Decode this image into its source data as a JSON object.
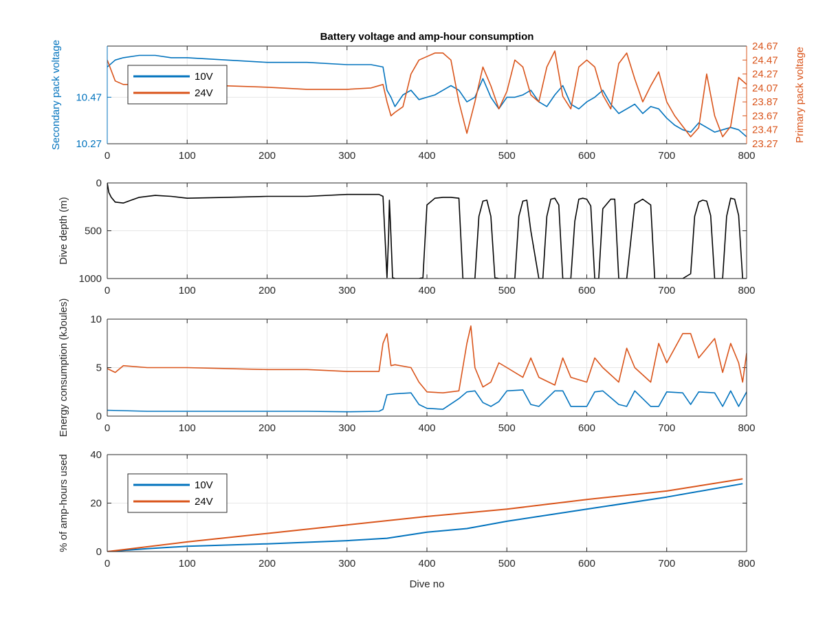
{
  "colors": {
    "blue": "#0072BD",
    "orange": "#D95319",
    "black": "#000000",
    "axis": "#262626",
    "grid": "#e6e6e6"
  },
  "chart_data": [
    {
      "type": "line",
      "title": "Battery voltage and amp-hour consumption",
      "ylabel": "Secondary pack voltage",
      "ylabel_right": "Primary pack voltage",
      "xlim": [
        0,
        800
      ],
      "xticks": [
        "0",
        "100",
        "200",
        "300",
        "400",
        "500",
        "600",
        "700",
        "800"
      ],
      "yticks_left": [
        "10.27",
        "10.47"
      ],
      "yticks_right": [
        "23.27",
        "23.47",
        "23.67",
        "23.87",
        "24.07",
        "24.27",
        "24.47",
        "24.67"
      ],
      "ylim_left": [
        10.27,
        10.69
      ],
      "ylim_right": [
        23.27,
        24.67
      ],
      "grid": true,
      "legend": {
        "position": "upper-left",
        "entries": [
          "10V",
          "24V"
        ]
      },
      "series": [
        {
          "name": "10V",
          "axis": "left",
          "x": [
            0,
            10,
            20,
            40,
            60,
            80,
            100,
            150,
            200,
            250,
            300,
            330,
            345,
            350,
            355,
            360,
            370,
            380,
            390,
            400,
            410,
            420,
            430,
            440,
            450,
            460,
            470,
            480,
            490,
            500,
            510,
            520,
            530,
            540,
            550,
            560,
            570,
            580,
            590,
            600,
            610,
            620,
            630,
            640,
            650,
            660,
            670,
            680,
            690,
            700,
            710,
            720,
            730,
            740,
            750,
            760,
            770,
            780,
            790,
            800
          ],
          "y": [
            10.6,
            10.63,
            10.64,
            10.65,
            10.65,
            10.64,
            10.64,
            10.63,
            10.62,
            10.62,
            10.61,
            10.61,
            10.6,
            10.5,
            10.47,
            10.43,
            10.48,
            10.5,
            10.46,
            10.47,
            10.48,
            10.5,
            10.52,
            10.5,
            10.45,
            10.47,
            10.55,
            10.47,
            10.42,
            10.47,
            10.47,
            10.48,
            10.5,
            10.45,
            10.43,
            10.48,
            10.52,
            10.44,
            10.42,
            10.45,
            10.47,
            10.5,
            10.44,
            10.4,
            10.42,
            10.44,
            10.4,
            10.43,
            10.42,
            10.38,
            10.35,
            10.33,
            10.32,
            10.36,
            10.34,
            10.32,
            10.33,
            10.34,
            10.33,
            10.3
          ]
        },
        {
          "name": "24V",
          "axis": "right",
          "x": [
            0,
            10,
            20,
            40,
            60,
            80,
            100,
            150,
            200,
            250,
            300,
            330,
            345,
            350,
            355,
            360,
            370,
            380,
            390,
            400,
            410,
            420,
            430,
            440,
            450,
            460,
            470,
            480,
            490,
            500,
            510,
            520,
            530,
            540,
            550,
            560,
            570,
            580,
            590,
            600,
            610,
            620,
            630,
            640,
            650,
            660,
            670,
            680,
            690,
            700,
            710,
            720,
            730,
            740,
            750,
            760,
            770,
            780,
            790,
            800
          ],
          "y": [
            24.47,
            24.17,
            24.12,
            24.12,
            24.1,
            24.12,
            24.12,
            24.1,
            24.08,
            24.05,
            24.05,
            24.07,
            24.12,
            23.87,
            23.67,
            23.72,
            23.8,
            24.27,
            24.47,
            24.52,
            24.57,
            24.57,
            24.47,
            23.87,
            23.42,
            23.87,
            24.37,
            24.1,
            23.77,
            24.02,
            24.47,
            24.37,
            23.97,
            23.87,
            24.37,
            24.6,
            23.95,
            23.77,
            24.37,
            24.47,
            24.37,
            23.97,
            23.77,
            24.42,
            24.57,
            24.2,
            23.87,
            24.1,
            24.3,
            23.87,
            23.67,
            23.52,
            23.37,
            23.5,
            24.27,
            23.67,
            23.37,
            23.52,
            24.22,
            24.12
          ]
        }
      ]
    },
    {
      "type": "line",
      "ylabel": "Dive depth (m)",
      "xlim": [
        0,
        800
      ],
      "ylim": [
        0,
        1000
      ],
      "reversed_y": true,
      "xticks": [
        "0",
        "100",
        "200",
        "300",
        "400",
        "500",
        "600",
        "700",
        "800"
      ],
      "yticks": [
        "0",
        "500",
        "1000"
      ],
      "grid": true,
      "series": [
        {
          "x": [
            0,
            2,
            5,
            10,
            20,
            30,
            40,
            60,
            80,
            100,
            150,
            200,
            250,
            300,
            320,
            340,
            345,
            350,
            352,
            353,
            355,
            357,
            360,
            370,
            380,
            390,
            395,
            400,
            410,
            420,
            430,
            440,
            445,
            455,
            460,
            465,
            470,
            475,
            480,
            485,
            490,
            500,
            510,
            515,
            520,
            525,
            530,
            540,
            545,
            550,
            555,
            560,
            565,
            570,
            580,
            585,
            590,
            595,
            600,
            605,
            610,
            615,
            620,
            630,
            635,
            640,
            645,
            650,
            660,
            670,
            680,
            685,
            690,
            695,
            700,
            710,
            720,
            730,
            735,
            740,
            745,
            750,
            755,
            760,
            770,
            775,
            780,
            785,
            790,
            795,
            800
          ],
          "y": [
            0,
            100,
            150,
            200,
            210,
            180,
            150,
            130,
            140,
            160,
            150,
            140,
            140,
            120,
            120,
            120,
            140,
            990,
            560,
            180,
            560,
            990,
            1000,
            1000,
            1000,
            1000,
            990,
            230,
            160,
            150,
            150,
            160,
            1000,
            1000,
            1000,
            350,
            190,
            180,
            350,
            990,
            1000,
            1000,
            1000,
            350,
            190,
            180,
            500,
            1000,
            1000,
            350,
            170,
            160,
            230,
            1000,
            1000,
            400,
            170,
            160,
            170,
            240,
            1000,
            1000,
            270,
            170,
            170,
            1000,
            1000,
            1000,
            220,
            170,
            230,
            1000,
            1000,
            1000,
            1000,
            1000,
            1000,
            950,
            350,
            200,
            180,
            190,
            340,
            1000,
            1000,
            350,
            160,
            170,
            340,
            1000,
            1000
          ]
        }
      ]
    },
    {
      "type": "line",
      "ylabel": "Energy consumption (kJoules)",
      "xlim": [
        0,
        800
      ],
      "ylim": [
        0,
        10
      ],
      "xticks": [
        "0",
        "100",
        "200",
        "300",
        "400",
        "500",
        "600",
        "700",
        "800"
      ],
      "yticks": [
        "0",
        "5",
        "10"
      ],
      "grid": true,
      "series": [
        {
          "name": "10V",
          "x": [
            0,
            50,
            100,
            150,
            200,
            250,
            300,
            340,
            345,
            350,
            360,
            380,
            390,
            400,
            420,
            440,
            450,
            460,
            470,
            480,
            490,
            500,
            520,
            530,
            540,
            560,
            570,
            580,
            600,
            610,
            620,
            640,
            650,
            660,
            680,
            690,
            700,
            720,
            730,
            740,
            760,
            770,
            780,
            790,
            800
          ],
          "y": [
            0.6,
            0.5,
            0.5,
            0.5,
            0.5,
            0.5,
            0.45,
            0.5,
            0.7,
            2.2,
            2.3,
            2.4,
            1.2,
            0.8,
            0.7,
            1.8,
            2.5,
            2.6,
            1.4,
            1.0,
            1.5,
            2.6,
            2.7,
            1.2,
            1.0,
            2.6,
            2.6,
            1.0,
            1.0,
            2.5,
            2.6,
            1.2,
            1.0,
            2.6,
            1.0,
            1.0,
            2.5,
            2.4,
            1.2,
            2.5,
            2.4,
            1.0,
            2.6,
            1.0,
            2.5
          ]
        },
        {
          "name": "24V",
          "x": [
            0,
            10,
            20,
            50,
            100,
            150,
            200,
            250,
            300,
            340,
            345,
            350,
            355,
            360,
            380,
            390,
            400,
            420,
            440,
            450,
            455,
            460,
            470,
            480,
            490,
            500,
            520,
            530,
            540,
            560,
            570,
            580,
            600,
            610,
            620,
            640,
            650,
            660,
            680,
            690,
            700,
            720,
            730,
            740,
            760,
            770,
            780,
            790,
            795,
            800
          ],
          "y": [
            4.9,
            4.5,
            5.2,
            5.0,
            5.0,
            4.9,
            4.8,
            4.8,
            4.6,
            4.6,
            7.5,
            8.5,
            5.2,
            5.3,
            5.0,
            3.5,
            2.5,
            2.4,
            2.6,
            7.5,
            9.3,
            5.0,
            3.0,
            3.5,
            5.5,
            5.0,
            4.0,
            6.0,
            4.0,
            3.2,
            6.0,
            4.0,
            3.5,
            6.0,
            5.0,
            3.5,
            7.0,
            5.0,
            3.5,
            7.5,
            5.5,
            8.5,
            8.5,
            6.0,
            8.0,
            4.5,
            7.5,
            5.5,
            3.5,
            6.5
          ]
        }
      ]
    },
    {
      "type": "line",
      "xlabel": "Dive no",
      "ylabel": "% of amp-hours used",
      "xlim": [
        0,
        800
      ],
      "ylim": [
        0,
        40
      ],
      "xticks": [
        "0",
        "100",
        "200",
        "300",
        "400",
        "500",
        "600",
        "700",
        "800"
      ],
      "yticks": [
        "0",
        "20",
        "40"
      ],
      "grid": true,
      "legend": {
        "position": "upper-left",
        "entries": [
          "10V",
          "24V"
        ]
      },
      "series": [
        {
          "name": "10V",
          "x": [
            0,
            50,
            100,
            200,
            300,
            350,
            400,
            450,
            500,
            600,
            700,
            795
          ],
          "y": [
            0,
            1.2,
            2.2,
            3.2,
            4.5,
            5.5,
            8,
            9.5,
            12.5,
            17.5,
            22.5,
            28
          ]
        },
        {
          "name": "24V",
          "x": [
            0,
            100,
            200,
            300,
            400,
            500,
            600,
            700,
            795
          ],
          "y": [
            0,
            4,
            7.5,
            11,
            14.5,
            17.5,
            21.5,
            25,
            30
          ]
        }
      ]
    }
  ]
}
